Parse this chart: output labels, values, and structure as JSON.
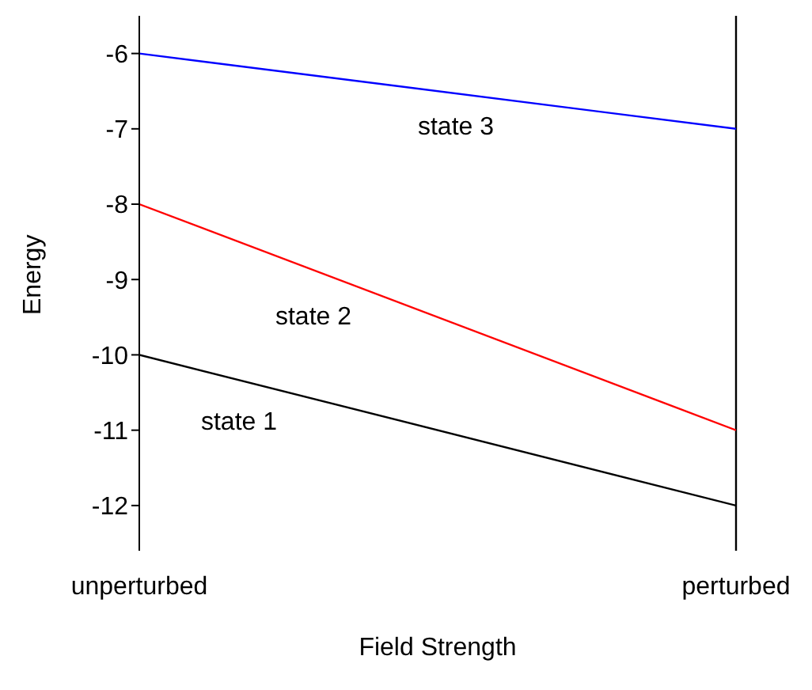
{
  "chart_data": {
    "type": "line",
    "xlabel": "Field Strength",
    "ylabel": "Energy",
    "categories": [
      "unperturbed",
      "perturbed"
    ],
    "series": [
      {
        "name": "state 1",
        "color": "#000000",
        "values": [
          -10,
          -12
        ]
      },
      {
        "name": "state 2",
        "color": "#ff0000",
        "values": [
          -8,
          -11
        ]
      },
      {
        "name": "state 3",
        "color": "#0000ff",
        "values": [
          -6,
          -7
        ]
      }
    ],
    "ylim": [
      -12.6,
      -5.5
    ],
    "yticks": [
      -12,
      -11,
      -10,
      -9,
      -8,
      -7,
      -6
    ],
    "ref_lines": [
      {
        "axis": "x",
        "value": "perturbed",
        "color": "#000000"
      }
    ],
    "grid": false,
    "legend": false,
    "marker": "none",
    "line_style": "solid"
  }
}
